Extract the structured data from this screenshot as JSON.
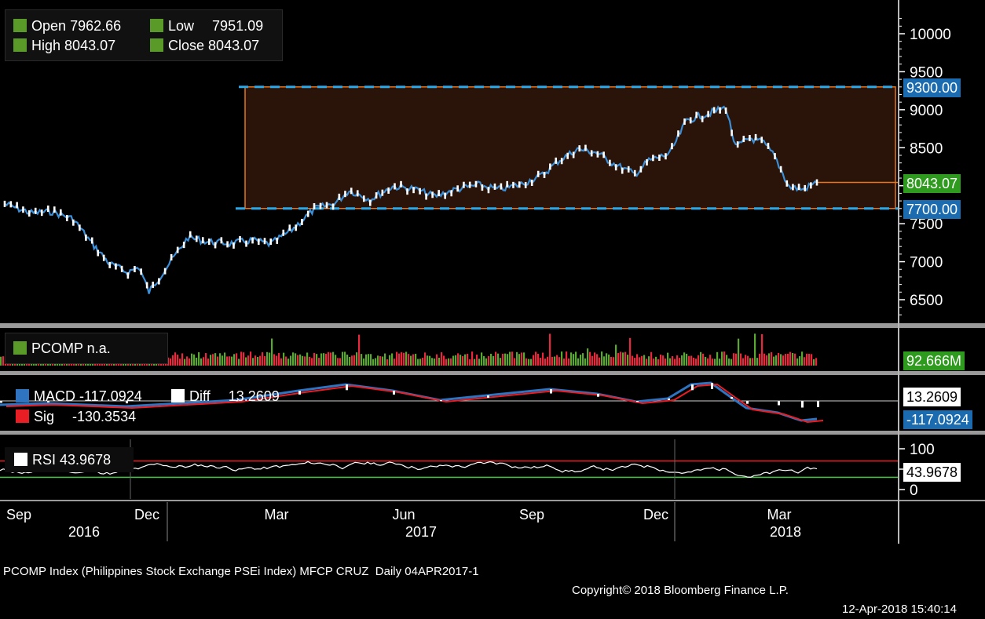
{
  "ohlc": {
    "open_label": "Open",
    "open_value": "7962.66",
    "high_label": "High",
    "high_value": "8043.07",
    "low_label": "Low",
    "low_value": "7951.09",
    "close_label": "Close",
    "close_value": "8043.07"
  },
  "price_tags": {
    "upper": "9300.00",
    "last": "8043.07",
    "lower": "7700.00"
  },
  "volume_panel": {
    "label": "PCOMP  n.a.",
    "value": "92.666M"
  },
  "macd_panel": {
    "macd_label": "MACD",
    "macd_value": "-117.0924",
    "diff_label": "Diff",
    "diff_value": "13.2609",
    "sig_label": "Sig",
    "sig_value": "-130.3534",
    "tag_diff": "13.2609",
    "tag_macd": "-117.0924"
  },
  "rsi_panel": {
    "label": "RSI",
    "value": "43.9678",
    "tag": "43.9678"
  },
  "x_axis": {
    "months": [
      "Sep",
      "Dec",
      "Mar",
      "Jun",
      "Sep",
      "Dec",
      "Mar"
    ],
    "years": [
      "2016",
      "2017",
      "2018"
    ]
  },
  "footer": {
    "left": "PCOMP Index (Philippines Stock Exchange PSEi Index) MFCP CRUZ  Daily 04APR2017-1",
    "middle": "Copyright© 2018 Bloomberg Finance L.P.",
    "right": "12-Apr-2018 15:40:14"
  },
  "colors": {
    "background": "#000000",
    "price_line": "#3a8fd8",
    "band_fill": "#2a1308",
    "band_edge": "#e8761c",
    "dashed": "#2aa8e8",
    "volume_up": "#5aa832",
    "volume_down": "#e8283c",
    "macd": "#2e74c0",
    "signal": "#e81e24",
    "rsi_upper": "#e81e24",
    "rsi_lower": "#3cc83c"
  },
  "chart_data": {
    "type": "line",
    "title": "PCOMP Index (Philippines Stock Exchange PSEi Index)",
    "ylim": [
      6200,
      10400
    ],
    "yticks": [
      6500,
      7000,
      7500,
      8000,
      8500,
      9000,
      9500,
      10000
    ],
    "range_upper": 9300,
    "range_lower": 7700,
    "last": 8043.07,
    "x": [
      "2016-09-01",
      "2016-09-20",
      "2016-10-05",
      "2016-10-20",
      "2016-11-01",
      "2016-11-15",
      "2016-11-28",
      "2016-12-06",
      "2016-12-13",
      "2016-12-23",
      "2017-01-10",
      "2017-01-25",
      "2017-02-10",
      "2017-02-25",
      "2017-03-10",
      "2017-03-25",
      "2017-04-10",
      "2017-04-25",
      "2017-05-05",
      "2017-05-20",
      "2017-06-05",
      "2017-06-20",
      "2017-07-05",
      "2017-07-20",
      "2017-08-05",
      "2017-08-20",
      "2017-09-05",
      "2017-09-20",
      "2017-10-01",
      "2017-10-15",
      "2017-10-28",
      "2017-11-10",
      "2017-11-25",
      "2017-12-05",
      "2017-12-20",
      "2018-01-01",
      "2018-01-15",
      "2018-01-29",
      "2018-02-05",
      "2018-02-15",
      "2018-02-25",
      "2018-03-05",
      "2018-03-15",
      "2018-03-25",
      "2018-04-04"
    ],
    "series": [
      {
        "values": [
          7760,
          7640,
          7660,
          7560,
          7270,
          6970,
          6860,
          6930,
          6600,
          6860,
          7320,
          7260,
          7240,
          7280,
          7230,
          7420,
          7690,
          7770,
          7940,
          7820,
          7990,
          7960,
          7860,
          7950,
          8010,
          7950,
          8020,
          8140,
          8320,
          8480,
          8440,
          8290,
          8150,
          8330,
          8420,
          8860,
          8940,
          9030,
          8500,
          8630,
          8560,
          8380,
          7990,
          7950,
          8043
        ]
      }
    ],
    "volume_last": "92.666M",
    "macd": {
      "macd": -117.0924,
      "signal": -130.3534,
      "diff": 13.2609
    },
    "rsi": {
      "value": 43.9678,
      "upper": 70,
      "lower": 30,
      "ticks": [
        0,
        50,
        100
      ]
    }
  }
}
